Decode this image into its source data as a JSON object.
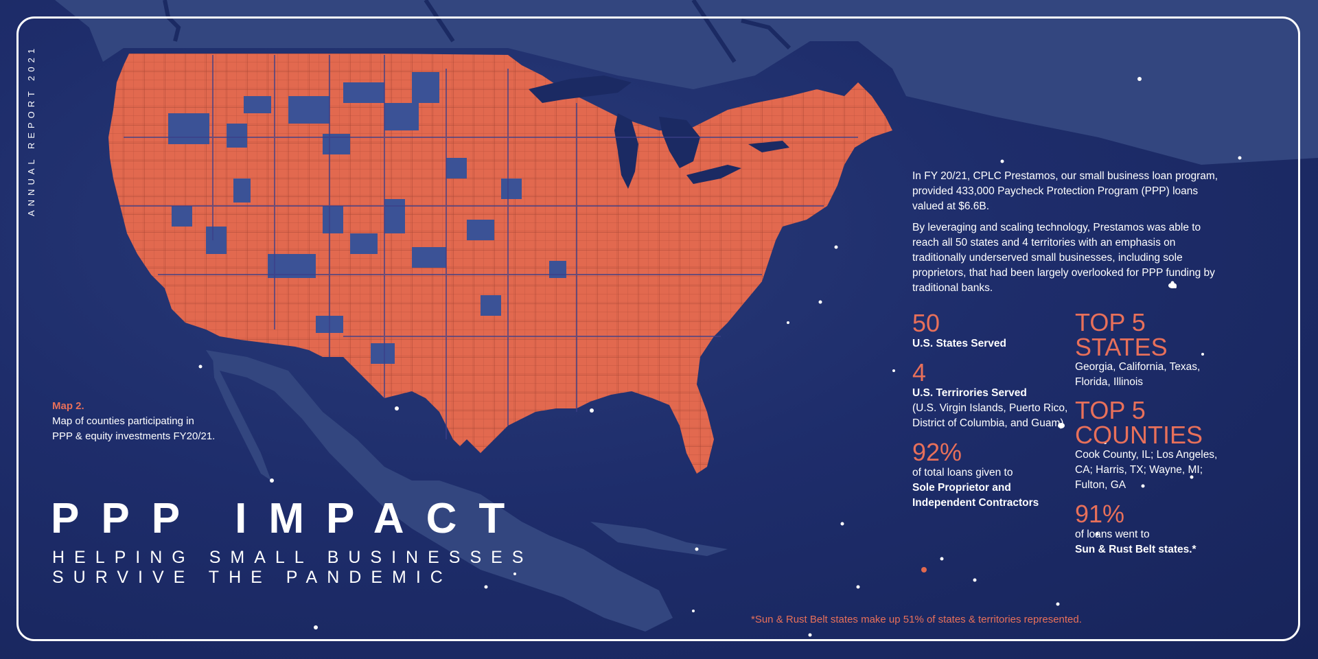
{
  "vertical_label": "ANNUAL REPORT 2021",
  "map_caption": {
    "title": "Map 2.",
    "text": "Map of counties participating in PPP & equity investments FY20/21."
  },
  "headline": "PPP IMPACT",
  "subhead": {
    "line1": "HELPING SMALL BUSINESSES",
    "line2": "SURVIVE THE PANDEMIC"
  },
  "intro": {
    "p1": "In FY 20/21, CPLC Prestamos, our small business loan program, provided 433,000 Paycheck Protection Program (PPP) loans valued at $6.6B.",
    "p2": "By leveraging and scaling technology, Prestamos was able to reach all 50 states and 4 territories with an emphasis on traditionally underserved small businesses, including sole proprietors, that had been largely overlooked for PPP funding by traditional banks."
  },
  "stats": {
    "states_num": "50",
    "states_label": "U.S. States Served",
    "territories_num": "4",
    "territories_label": "U.S. Terrirories Served",
    "territories_detail": "(U.S. Virgin Islands, Puerto Rico, District of Columbia, and Guam)",
    "pct_sole_num": "92%",
    "pct_sole_text": "of total loans given to",
    "pct_sole_bold": "Sole Proprietor and Independent Contractors",
    "top_states_head": "TOP 5 STATES",
    "top_states_list": "Georgia, California, Texas, Florida, Illinois",
    "top_counties_head": "TOP 5 COUNTIES",
    "top_counties_list": "Cook County, IL; Los Angeles, CA; Harris, TX; Wayne, MI; Fulton, GA",
    "pct_belt_num": "91%",
    "pct_belt_text": "of loans went to",
    "pct_belt_bold": "Sun & Rust Belt states.*"
  },
  "footnote": "*Sun & Rust Belt states make up 51% of states & territories represented.",
  "colors": {
    "background": "#1e2d6b",
    "land_other": "#3a4d8c",
    "participating_counties": "#e2694f",
    "non_participating": "#3b5296",
    "accent_text": "#e8705a",
    "frame": "#ffffff"
  }
}
